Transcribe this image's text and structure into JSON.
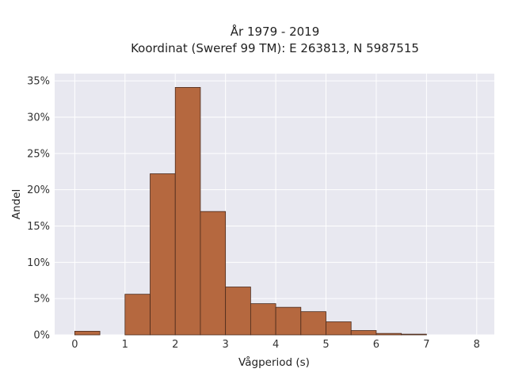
{
  "chart_data": {
    "type": "bar",
    "title": "År 1979 - 2019",
    "subtitle": "Koordinat (Sweref 99 TM): E 263813, N 5987515",
    "xlabel": "Vågperiod (s)",
    "ylabel": "Andel",
    "bin_width": 0.5,
    "bin_starts": [
      0,
      0.5,
      1,
      1.5,
      2,
      2.5,
      3,
      3.5,
      4,
      4.5,
      5,
      5.5,
      6,
      6.5,
      7,
      7.5
    ],
    "values": [
      0.5,
      0,
      5.6,
      22.2,
      34.1,
      17.0,
      6.6,
      4.3,
      3.8,
      3.2,
      1.8,
      0.6,
      0.2,
      0.1,
      0,
      0
    ],
    "xlim": [
      -0.4,
      8.35
    ],
    "ylim": [
      0,
      36
    ],
    "x_ticks": [
      0,
      1,
      2,
      3,
      4,
      5,
      6,
      7,
      8
    ],
    "y_ticks": [
      0,
      5,
      10,
      15,
      20,
      25,
      30,
      35
    ],
    "y_tick_format": "percent",
    "grid": true,
    "colors": {
      "bar_fill": "#b5683f",
      "bar_edge": "#4a2a1c",
      "plot_background": "#e8e8f0",
      "grid": "#ffffff"
    }
  }
}
